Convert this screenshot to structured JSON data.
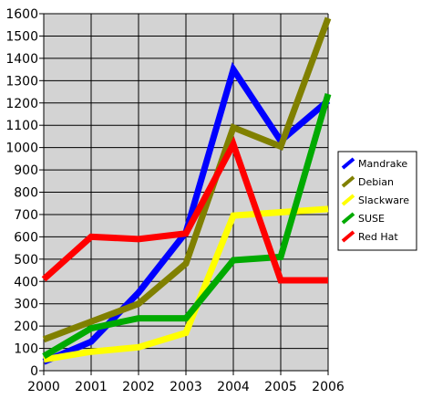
{
  "chart_data": {
    "type": "line",
    "title": "",
    "xlabel": "",
    "ylabel": "",
    "x": [
      "2000",
      "2001",
      "2002",
      "2003",
      "2004",
      "2005",
      "2006"
    ],
    "ylim": [
      0,
      1600
    ],
    "yticks": [
      0,
      100,
      200,
      300,
      400,
      500,
      600,
      700,
      800,
      900,
      1000,
      1100,
      1200,
      1300,
      1400,
      1500,
      1600
    ],
    "grid": true,
    "plot_background": "#d3d3d3",
    "legend_position": "right",
    "series": [
      {
        "name": "Mandrake",
        "color": "#0000ff",
        "values": [
          40,
          130,
          350,
          620,
          1350,
          1030,
          1210
        ]
      },
      {
        "name": "Debian",
        "color": "#808000",
        "values": [
          140,
          220,
          300,
          480,
          1090,
          1005,
          1580
        ]
      },
      {
        "name": "Slackware",
        "color": "#ffff00",
        "values": [
          50,
          85,
          105,
          170,
          695,
          710,
          725
        ]
      },
      {
        "name": "SUSE",
        "color": "#00aa00",
        "values": [
          65,
          190,
          235,
          235,
          495,
          510,
          1240
        ]
      },
      {
        "name": "Red Hat",
        "color": "#ff0000",
        "values": [
          410,
          600,
          590,
          615,
          1015,
          405,
          405
        ]
      }
    ]
  }
}
